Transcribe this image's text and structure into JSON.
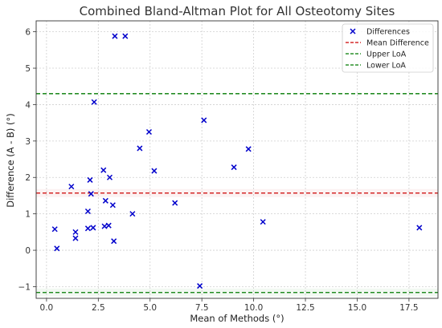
{
  "chart_data": {
    "type": "scatter",
    "title": "Combined Bland-Altman Plot for All Osteotomy Sites",
    "xlabel": "Mean of Methods (°)",
    "ylabel": "Difference (A - B) (°)",
    "xlim": [
      -0.5,
      18.9
    ],
    "ylim": [
      -1.32,
      6.3
    ],
    "xticks": [
      0.0,
      2.5,
      5.0,
      7.5,
      10.0,
      12.5,
      15.0,
      17.5
    ],
    "xtick_labels": [
      "0.0",
      "2.5",
      "5.0",
      "7.5",
      "10.0",
      "12.5",
      "15.0",
      "17.5"
    ],
    "yticks": [
      -1,
      0,
      1,
      2,
      3,
      4,
      5,
      6
    ],
    "ytick_labels": [
      "−1",
      "0",
      "1",
      "2",
      "3",
      "4",
      "5",
      "6"
    ],
    "grid": true,
    "legend_position": "top-right",
    "series": [
      {
        "name": "Differences",
        "marker": "x",
        "color": "#0000cc",
        "x": [
          0.4,
          0.5,
          1.2,
          1.4,
          1.4,
          2.0,
          2.0,
          2.1,
          2.15,
          2.25,
          2.3,
          2.75,
          2.8,
          2.85,
          3.0,
          3.05,
          3.2,
          3.25,
          3.3,
          3.8,
          4.15,
          4.5,
          4.95,
          5.2,
          6.2,
          7.4,
          7.6,
          9.05,
          9.75,
          10.45,
          18.0
        ],
        "y": [
          0.58,
          0.05,
          1.75,
          0.5,
          0.33,
          1.07,
          0.6,
          1.93,
          1.55,
          0.62,
          4.07,
          2.2,
          0.66,
          1.36,
          0.68,
          2.0,
          1.24,
          0.25,
          5.88,
          5.88,
          1.0,
          2.8,
          3.25,
          2.18,
          1.3,
          -0.98,
          3.57,
          2.28,
          2.78,
          0.78,
          0.62
        ]
      }
    ],
    "reference_lines": [
      {
        "name": "Mean Difference",
        "y": 1.57,
        "color": "#cc0000",
        "style": "dashed"
      },
      {
        "name": "Upper LoA",
        "y": 4.3,
        "color": "#007a00",
        "style": "dashed"
      },
      {
        "name": "Lower LoA",
        "y": -1.16,
        "color": "#007a00",
        "style": "dashed"
      }
    ],
    "legend": [
      "Differences",
      "Mean Difference",
      "Upper LoA",
      "Lower LoA"
    ]
  }
}
